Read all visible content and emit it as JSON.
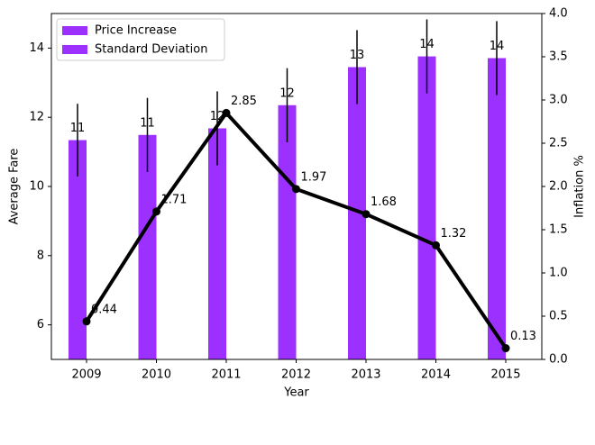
{
  "chart_data": {
    "type": "combo",
    "categories": [
      "2009",
      "2010",
      "2011",
      "2012",
      "2013",
      "2014",
      "2015"
    ],
    "x_label": "Year",
    "y_label": "Average Fare",
    "y2_label": "Inflation %",
    "ylim": [
      5,
      15
    ],
    "yticks": [
      6,
      8,
      10,
      12,
      14
    ],
    "y2lim": [
      0,
      4
    ],
    "y2ticks": [
      {
        "value": 0,
        "label": "0.0"
      },
      0.5,
      {
        "value": 1,
        "label": "1.0"
      },
      1.5,
      {
        "value": 2,
        "label": "2.0"
      },
      2.5,
      {
        "value": 3,
        "label": "3.0"
      },
      3.5,
      {
        "value": 4,
        "label": "4.0"
      }
    ],
    "bars": {
      "color": "#9b30ff",
      "values": [
        11.34,
        11.49,
        11.68,
        12.35,
        13.45,
        13.76,
        13.71
      ],
      "errors": [
        1.05,
        1.07,
        1.07,
        1.07,
        1.07,
        1.07,
        1.07
      ],
      "value_labels": [
        "11",
        "11",
        "12",
        "12",
        "13",
        "14",
        "14"
      ]
    },
    "line": {
      "color": "#000000",
      "axis": "y2",
      "values": [
        0.44,
        1.71,
        2.85,
        1.97,
        1.68,
        1.32,
        0.13
      ]
    },
    "legend": [
      {
        "label": "Price Increase",
        "color": "#9b30ff"
      },
      {
        "label": "Standard Deviation",
        "color": "#9b30ff"
      }
    ],
    "legend_position": "upper left"
  }
}
